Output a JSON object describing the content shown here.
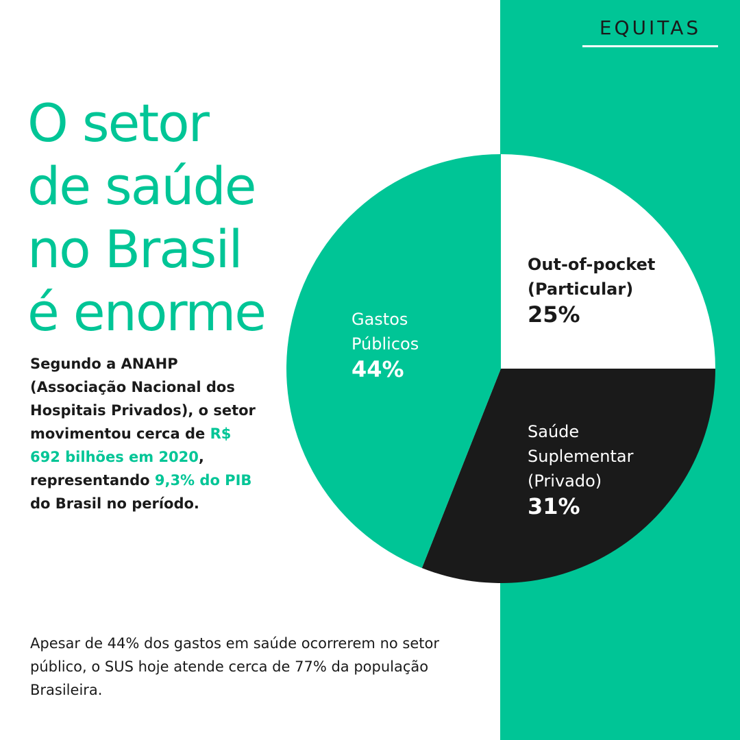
{
  "brand": "EQUITAS",
  "headline": [
    "O setor",
    "de saúde",
    "no Brasil",
    "é enorme"
  ],
  "body": {
    "p1": "Segundo a ANAHP (Associação Nacional dos Hospitais Privados), o setor movimentou cerca de ",
    "hl1": "R$ 692 bilhões em 2020",
    "p2": ", representando ",
    "hl2": "9,3% do PIB",
    "p3": " do Brasil no período."
  },
  "footnote": "Apesar de 44% dos gastos em saúde ocorrerem no setor público, o SUS hoje atende cerca de 77% da população Brasileira.",
  "colors": {
    "green": "#00c596",
    "black": "#1a1a1a",
    "white": "#ffffff"
  },
  "chart_data": {
    "type": "pie",
    "start": "12 o'clock, clockwise",
    "slices": [
      {
        "label_lines": [
          "Out-of-pocket",
          "(Particular)"
        ],
        "value": 25,
        "value_label": "25%",
        "color": "#ffffff",
        "text_color": "#1a1a1a"
      },
      {
        "label_lines": [
          "Saúde",
          "Suplementar",
          "(Privado)"
        ],
        "value": 31,
        "value_label": "31%",
        "color": "#1a1a1a",
        "text_color": "#ffffff"
      },
      {
        "label_lines": [
          "Gastos",
          "Públicos"
        ],
        "value": 44,
        "value_label": "44%",
        "color": "#00c596",
        "text_color": "#ffffff"
      }
    ]
  }
}
